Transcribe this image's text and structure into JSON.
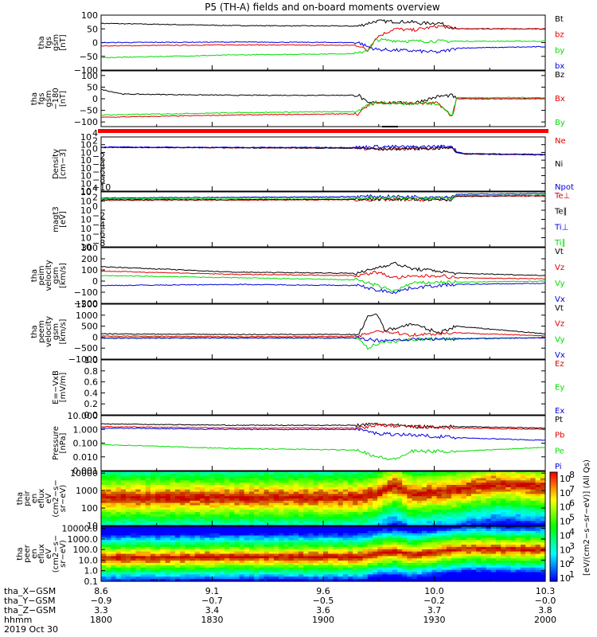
{
  "title": "P5 (TH-A) fields and on-board moments overview",
  "colors": {
    "black": "#000000",
    "red": "#e00000",
    "green": "#00dd00",
    "blue": "#0000e0",
    "bar_red": "#ff0000"
  },
  "chart_data": [
    {
      "type": "line",
      "panel": "fgs",
      "ylabel": [
        "tha",
        "fgs",
        "gsm",
        "[nT]"
      ],
      "ylim": [
        -100,
        100
      ],
      "yticks": [
        "100",
        "50",
        "0",
        "−50",
        "−100"
      ],
      "yticks_values": [
        100,
        50,
        0,
        -50,
        -100
      ],
      "series": [
        {
          "name": "Bt",
          "color": "black",
          "t": [
            0,
            0.3,
            0.58,
            0.6,
            0.62,
            0.7,
            0.72,
            0.76,
            0.79,
            0.8,
            1
          ],
          "y": [
            70,
            62,
            60,
            70,
            78,
            75,
            70,
            72,
            55,
            50,
            50
          ]
        },
        {
          "name": "bz",
          "color": "red",
          "t": [
            0,
            0.3,
            0.58,
            0.6,
            0.62,
            0.66,
            0.7,
            0.76,
            0.79,
            0.8,
            1
          ],
          "y": [
            -12,
            -8,
            -10,
            -30,
            20,
            50,
            45,
            60,
            55,
            50,
            50
          ]
        },
        {
          "name": "by",
          "color": "green",
          "t": [
            0,
            0.3,
            0.58,
            0.6,
            0.62,
            0.7,
            0.76,
            0.79,
            0.8,
            1
          ],
          "y": [
            -55,
            -45,
            -40,
            -25,
            10,
            5,
            5,
            5,
            5,
            5
          ]
        },
        {
          "name": "bx",
          "color": "blue",
          "t": [
            0,
            0.3,
            0.58,
            0.6,
            0.62,
            0.7,
            0.76,
            0.79,
            0.8,
            1
          ],
          "y": [
            0,
            2,
            0,
            -15,
            -25,
            -30,
            -35,
            -25,
            -20,
            -15
          ]
        }
      ]
    },
    {
      "type": "line",
      "panel": "fgs-gse",
      "ylabel": [
        "tha",
        "fgs",
        "gsm",
        "−180",
        "[nT]"
      ],
      "ylim": [
        -120,
        120
      ],
      "yticks": [
        "100",
        "50",
        "0",
        "−50",
        "−100"
      ],
      "yticks_values": [
        100,
        50,
        0,
        -50,
        -100
      ],
      "series": [
        {
          "name": "Bz",
          "color": "black",
          "t": [
            0,
            0.05,
            0.3,
            0.58,
            0.6,
            0.62,
            0.7,
            0.76,
            0.79,
            0.8,
            1
          ],
          "y": [
            40,
            20,
            15,
            15,
            -20,
            -15,
            -20,
            10,
            15,
            0,
            0
          ]
        },
        {
          "name": "Bx",
          "color": "red",
          "t": [
            0,
            0.3,
            0.58,
            0.6,
            0.62,
            0.7,
            0.76,
            0.79,
            0.8,
            1
          ],
          "y": [
            -80,
            -70,
            -65,
            -30,
            -15,
            -20,
            -20,
            -80,
            0,
            0
          ]
        },
        {
          "name": "By",
          "color": "green",
          "t": [
            0,
            0.3,
            0.58,
            0.6,
            0.62,
            0.7,
            0.76,
            0.79,
            0.8,
            1
          ],
          "y": [
            -70,
            -60,
            -55,
            -30,
            -15,
            -20,
            -20,
            -75,
            5,
            5
          ]
        }
      ]
    },
    {
      "type": "line",
      "panel": "density",
      "log": true,
      "ylabel": [
        "Density",
        "[cm−3]"
      ],
      "ylim_exp": [
        -10,
        4
      ],
      "yticks": [
        "10",
        "10",
        "10",
        "10",
        "10",
        "10",
        "10",
        "10"
      ],
      "yticks_values": [
        4,
        2,
        0,
        -2,
        -4,
        -6,
        -8,
        -10
      ],
      "ytick_exponents": [
        "4",
        "2",
        "0",
        "−2",
        "−4",
        "−6",
        "−8",
        "−10"
      ],
      "series": [
        {
          "name": "Ne",
          "color": "red",
          "t": [
            0,
            0.3,
            0.58,
            0.62,
            0.7,
            0.79,
            0.8,
            0.82,
            1
          ],
          "y": [
            1.3,
            1.2,
            1.1,
            0.9,
            1.0,
            1.2,
            0.0,
            -0.4,
            -0.6
          ]
        },
        {
          "name": "Ni",
          "color": "black",
          "t": [
            0,
            0.3,
            0.58,
            0.62,
            0.7,
            0.79,
            0.8,
            0.82,
            1
          ],
          "y": [
            1.3,
            1.2,
            1.1,
            0.9,
            1.0,
            1.2,
            0.0,
            -0.4,
            -0.6
          ]
        },
        {
          "name": "Npot",
          "color": "blue",
          "t": [
            0,
            0.3,
            0.58,
            0.62,
            0.7,
            0.79,
            0.8,
            0.82,
            1
          ],
          "y": [
            1.4,
            1.3,
            1.3,
            1.5,
            1.4,
            1.6,
            0.2,
            -0.3,
            -0.5
          ]
        }
      ]
    },
    {
      "type": "line",
      "panel": "temperature",
      "log": true,
      "ylabel": [
        "magt3",
        "[eV]"
      ],
      "ylim_exp": [
        -8,
        4
      ],
      "yticks": [
        "10",
        "10",
        "10",
        "10",
        "10",
        "10",
        "10"
      ],
      "yticks_values": [
        4,
        2,
        0,
        -2,
        -4,
        -6,
        -8
      ],
      "ytick_exponents": [
        "4",
        "2",
        "0",
        "−2",
        "−4",
        "−6",
        "−8"
      ],
      "series": [
        {
          "name": "Te⊥",
          "color": "red",
          "t": [
            0,
            0.3,
            0.6,
            0.79,
            0.8,
            1
          ],
          "y": [
            2.2,
            2.2,
            2.3,
            2.3,
            3.0,
            3.1
          ]
        },
        {
          "name": "Te∥",
          "color": "black",
          "t": [
            0,
            0.3,
            0.6,
            0.79,
            0.8,
            1
          ],
          "y": [
            2.3,
            2.3,
            2.4,
            2.4,
            3.1,
            3.2
          ]
        },
        {
          "name": "Ti⊥",
          "color": "blue",
          "t": [
            0,
            0.3,
            0.6,
            0.79,
            0.8,
            1
          ],
          "y": [
            2.7,
            2.8,
            3.0,
            2.9,
            3.5,
            3.6
          ]
        },
        {
          "name": "Ti∥",
          "color": "green",
          "t": [
            0,
            0.3,
            0.6,
            0.79,
            0.8,
            1
          ],
          "y": [
            2.5,
            2.6,
            2.7,
            2.6,
            3.2,
            3.3
          ]
        }
      ]
    },
    {
      "type": "line",
      "panel": "peim-velocity",
      "ylabel": [
        "tha",
        "peim",
        "velocity",
        "gsm",
        "[km/s]"
      ],
      "ylim": [
        -200,
        300
      ],
      "yticks": [
        "300",
        "200",
        "100",
        "0",
        "−100",
        "−200"
      ],
      "yticks_values": [
        300,
        200,
        100,
        0,
        -100,
        -200
      ],
      "series": [
        {
          "name": "Vt",
          "color": "black",
          "t": [
            0,
            0.3,
            0.58,
            0.62,
            0.66,
            0.7,
            0.76,
            0.8,
            1
          ],
          "y": [
            130,
            80,
            70,
            120,
            160,
            110,
            90,
            70,
            50
          ]
        },
        {
          "name": "Vz",
          "color": "red",
          "t": [
            0,
            0.3,
            0.58,
            0.62,
            0.66,
            0.7,
            0.76,
            0.8,
            1
          ],
          "y": [
            90,
            60,
            50,
            80,
            30,
            40,
            50,
            30,
            20
          ]
        },
        {
          "name": "Vy",
          "color": "green",
          "t": [
            0,
            0.3,
            0.58,
            0.62,
            0.66,
            0.7,
            0.76,
            0.8,
            1
          ],
          "y": [
            50,
            30,
            10,
            -40,
            -90,
            -20,
            -10,
            -10,
            0
          ]
        },
        {
          "name": "Vx",
          "color": "blue",
          "t": [
            0,
            0.3,
            0.58,
            0.62,
            0.66,
            0.7,
            0.76,
            0.8,
            1
          ],
          "y": [
            -40,
            -30,
            -40,
            -80,
            -100,
            -60,
            -40,
            -30,
            -20
          ]
        }
      ]
    },
    {
      "type": "line",
      "panel": "peem-velocity",
      "ylabel": [
        "tha",
        "peem",
        "velocity",
        "gsm",
        "[km/s]"
      ],
      "ylim": [
        -1000,
        1500
      ],
      "yticks": [
        "1500",
        "1000",
        "500",
        "0",
        "−500",
        "−1000"
      ],
      "yticks_values": [
        1500,
        1000,
        500,
        0,
        -500,
        -1000
      ],
      "series": [
        {
          "name": "Vt",
          "color": "black",
          "t": [
            0,
            0.3,
            0.58,
            0.6,
            0.62,
            0.64,
            0.7,
            0.76,
            0.8,
            1
          ],
          "y": [
            150,
            120,
            120,
            900,
            1100,
            300,
            600,
            200,
            500,
            150
          ]
        },
        {
          "name": "Vz",
          "color": "red",
          "t": [
            0,
            0.3,
            0.58,
            0.62,
            0.7,
            0.8,
            1
          ],
          "y": [
            50,
            20,
            30,
            300,
            100,
            200,
            50
          ]
        },
        {
          "name": "Vy",
          "color": "green",
          "t": [
            0,
            0.3,
            0.58,
            0.6,
            0.62,
            0.7,
            0.8,
            1
          ],
          "y": [
            -20,
            -30,
            -40,
            -500,
            -300,
            -100,
            -60,
            -20
          ]
        },
        {
          "name": "Vx",
          "color": "blue",
          "t": [
            0,
            0.3,
            0.58,
            0.62,
            0.7,
            0.8,
            1
          ],
          "y": [
            -50,
            -40,
            -40,
            -150,
            -100,
            -80,
            -30
          ]
        }
      ]
    },
    {
      "type": "line",
      "panel": "efield",
      "ylabel": [
        "E=−VxB",
        "[mV/m]"
      ],
      "ylim": [
        0,
        1
      ],
      "yticks": [
        "1.0",
        "0.8",
        "0.6",
        "0.4",
        "0.2",
        "0.0"
      ],
      "yticks_values": [
        1.0,
        0.8,
        0.6,
        0.4,
        0.2,
        0.0
      ],
      "series": [
        {
          "name": "Ez",
          "color": "red",
          "t": [],
          "y": []
        },
        {
          "name": "Ey",
          "color": "green",
          "t": [],
          "y": []
        },
        {
          "name": "Ex",
          "color": "blue",
          "t": [],
          "y": []
        }
      ]
    },
    {
      "type": "line",
      "panel": "pressure",
      "log": true,
      "ylabel": [
        "Pressure",
        "[nPa]"
      ],
      "ylim_exp": [
        -3,
        1
      ],
      "yticks": [
        "10.000",
        "1.000",
        "0.100",
        "0.010",
        "0.001"
      ],
      "yticks_values": [
        1,
        0,
        -1,
        -2,
        -3
      ],
      "series": [
        {
          "name": "Pt",
          "color": "black",
          "t": [
            0,
            0.3,
            0.58,
            0.62,
            0.7,
            0.8,
            1
          ],
          "y": [
            0.4,
            0.3,
            0.3,
            0.4,
            0.2,
            0.2,
            0.1
          ]
        },
        {
          "name": "Pb",
          "color": "red",
          "t": [
            0,
            0.3,
            0.58,
            0.62,
            0.7,
            0.8,
            1
          ],
          "y": [
            0.2,
            0.1,
            0.1,
            0.3,
            0.2,
            0.1,
            0.0
          ]
        },
        {
          "name": "Pe",
          "color": "green",
          "t": [
            0,
            0.3,
            0.58,
            0.62,
            0.66,
            0.7,
            0.8,
            1
          ],
          "y": [
            -1.1,
            -1.4,
            -1.5,
            -2.0,
            -2.2,
            -1.6,
            -1.6,
            -1.3
          ]
        },
        {
          "name": "Pi",
          "color": "blue",
          "t": [
            0,
            0.3,
            0.58,
            0.62,
            0.7,
            0.8,
            1
          ],
          "y": [
            0.1,
            0.0,
            0.0,
            -0.3,
            -0.4,
            -0.6,
            -0.8
          ]
        }
      ]
    },
    {
      "type": "heatmap",
      "panel": "peir-spectrogram",
      "log": true,
      "ylabel": [
        "tha",
        "peir",
        "en",
        "eflux",
        "eV",
        "(cm2−s−",
        "sr−eV)"
      ],
      "ylim_exp": [
        1,
        4.1
      ],
      "yticks": [
        "10000",
        "1000",
        "100",
        "10"
      ],
      "yticks_values": [
        4,
        3,
        2,
        1
      ],
      "t": [
        0,
        0.3,
        0.58,
        0.62,
        0.66,
        0.7,
        0.8,
        0.84,
        0.9,
        1
      ],
      "peak_log_energy": [
        2.6,
        2.6,
        2.6,
        2.8,
        3.3,
        2.8,
        3.0,
        3.2,
        3.4,
        3.2
      ]
    },
    {
      "type": "heatmap",
      "panel": "peer-spectrogram",
      "log": true,
      "ylabel": [
        "tha",
        "peer",
        "en",
        "eflux",
        "eV",
        "(cm2−s−",
        "sr−eV)"
      ],
      "ylim_exp": [
        -1,
        4.2
      ],
      "yticks": [
        "10000.0",
        "1000.0",
        "100.0",
        "10.0",
        "1.0",
        "0.1"
      ],
      "yticks_values": [
        4,
        3,
        2,
        1,
        0,
        -1
      ],
      "t": [
        0,
        0.3,
        0.58,
        0.62,
        0.66,
        0.7,
        0.8,
        0.84,
        0.9,
        1
      ],
      "peak_log_energy": [
        1.2,
        1.3,
        1.3,
        1.6,
        1.8,
        1.5,
        2.0,
        2.1,
        2.0,
        2.0
      ]
    }
  ],
  "colorbar": {
    "label": "[eV/(cm2−s−sr−eV)] (All Qs)",
    "ticks": [
      "10",
      "10",
      "10",
      "10",
      "10",
      "10",
      "10",
      "10"
    ],
    "tick_exponents": [
      "8",
      "7",
      "6",
      "5",
      "4",
      "3",
      "2",
      "1"
    ]
  },
  "xaxis": {
    "rows": [
      {
        "label": "tha_X−GSM",
        "values": [
          "8.6",
          "9.1",
          "9.6",
          "10.0",
          "10.3"
        ]
      },
      {
        "label": "tha_Y−GSM",
        "values": [
          "−0.9",
          "−0.7",
          "−0.5",
          "−0.2",
          "−0.0"
        ]
      },
      {
        "label": "tha_Z−GSM",
        "values": [
          "3.3",
          "3.4",
          "3.6",
          "3.7",
          "3.8"
        ]
      },
      {
        "label": "hhmm",
        "values": [
          "1800",
          "1830",
          "1900",
          "1930",
          "2000"
        ]
      }
    ],
    "date": "2019 Oct 30"
  }
}
